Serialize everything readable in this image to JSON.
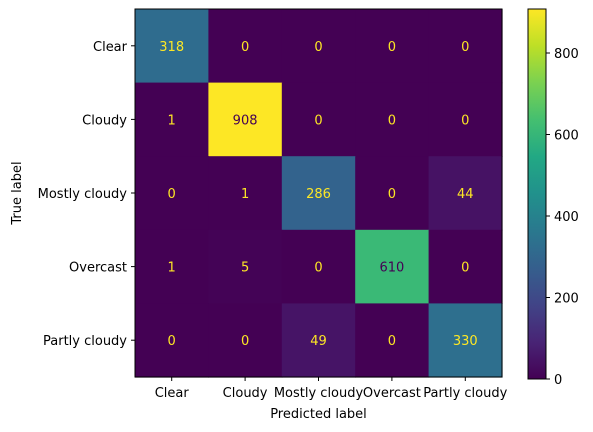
{
  "chart_data": {
    "type": "heatmap",
    "title": "",
    "xlabel": "Predicted label",
    "ylabel": "True label",
    "x_categories": [
      "Clear",
      "Cloudy",
      "Mostly cloudy",
      "Overcast",
      "Partly cloudy"
    ],
    "y_categories": [
      "Clear",
      "Cloudy",
      "Mostly cloudy",
      "Overcast",
      "Partly cloudy"
    ],
    "matrix": [
      [
        318,
        0,
        0,
        0,
        0
      ],
      [
        1,
        908,
        0,
        0,
        0
      ],
      [
        0,
        1,
        286,
        0,
        44
      ],
      [
        1,
        5,
        0,
        610,
        0
      ],
      [
        0,
        0,
        49,
        0,
        330
      ]
    ],
    "colormap": "viridis",
    "value_range": [
      0,
      908
    ],
    "colorbar": {
      "ticks": [
        0,
        200,
        400,
        600,
        800
      ],
      "tick_labels": [
        "0",
        "200",
        "400",
        "600",
        "800"
      ]
    },
    "text_colors": {
      "light": "#fde725",
      "dark": "#440154"
    }
  }
}
